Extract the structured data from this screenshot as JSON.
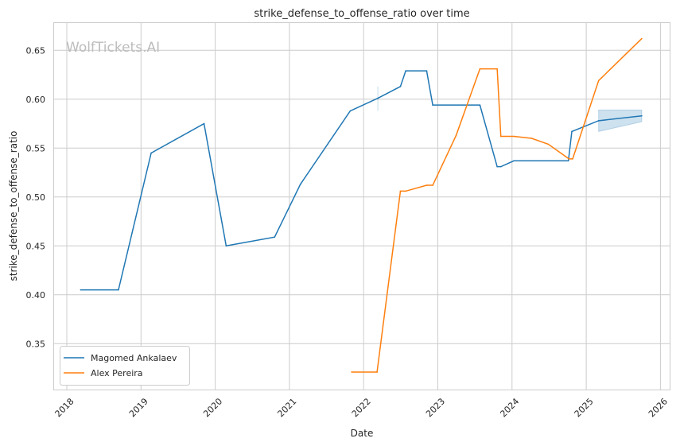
{
  "chart_data": {
    "type": "line",
    "title": "strike_defense_to_offense_ratio over time",
    "xlabel": "Date",
    "ylabel": "strike_defense_to_offense_ratio",
    "watermark": "WolfTickets.AI",
    "xlim": [
      "2017-10-20",
      "2026-02-10"
    ],
    "ylim": [
      0.303,
      0.679
    ],
    "x_ticks": [
      "2018",
      "2019",
      "2020",
      "2021",
      "2022",
      "2023",
      "2024",
      "2025",
      "2026"
    ],
    "y_ticks": [
      "0.35",
      "0.40",
      "0.45",
      "0.50",
      "0.55",
      "0.60",
      "0.65"
    ],
    "grid": true,
    "legend_position": "bottom-left",
    "series": [
      {
        "name": "Magomed Ankalaev",
        "color": "#1f77b4",
        "x": [
          "2018-03-10",
          "2018-09-12",
          "2019-02-20",
          "2019-11-07",
          "2020-02-24",
          "2020-10-20",
          "2021-02-24",
          "2021-10-27",
          "2022-03-12",
          "2022-07-01",
          "2022-07-27",
          "2022-11-07",
          "2022-12-07",
          "2023-07-27",
          "2023-10-20",
          "2023-11-07",
          "2024-01-10",
          "2024-10-05",
          "2024-10-22",
          "2025-03-03",
          "2025-10-01"
        ],
        "y": [
          0.405,
          0.405,
          0.545,
          0.575,
          0.45,
          0.459,
          0.513,
          0.588,
          0.601,
          0.613,
          0.629,
          0.629,
          0.594,
          0.594,
          0.531,
          0.531,
          0.537,
          0.537,
          0.567,
          0.578,
          0.583
        ],
        "error_marks": [
          {
            "x": "2022-03-12",
            "low": 0.588,
            "high": 0.613
          }
        ],
        "band": {
          "x": [
            "2025-03-03",
            "2025-10-01"
          ],
          "low": [
            0.567,
            0.577
          ],
          "high": [
            0.589,
            0.589
          ]
        }
      },
      {
        "name": "Alex Pereira",
        "color": "#ff7f0e",
        "x": [
          "2021-11-03",
          "2022-03-08",
          "2022-07-01",
          "2022-07-27",
          "2022-11-07",
          "2022-12-07",
          "2023-04-01",
          "2023-07-27",
          "2023-10-20",
          "2023-11-07",
          "2024-01-10",
          "2024-04-07",
          "2024-06-28",
          "2024-10-08",
          "2024-10-26",
          "2025-03-03",
          "2025-10-01"
        ],
        "y": [
          0.321,
          0.321,
          0.506,
          0.506,
          0.512,
          0.512,
          0.563,
          0.631,
          0.631,
          0.562,
          0.562,
          0.56,
          0.554,
          0.539,
          0.539,
          0.619,
          0.662
        ]
      }
    ]
  }
}
